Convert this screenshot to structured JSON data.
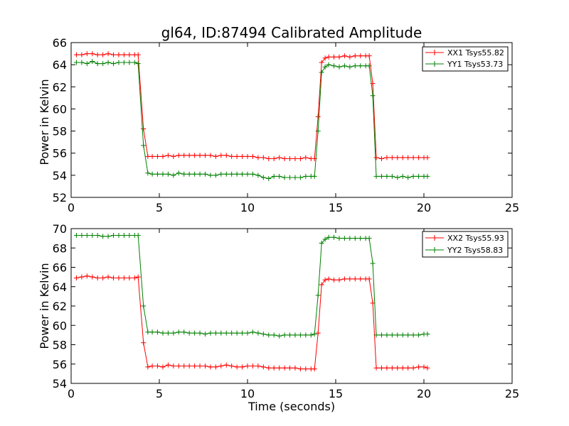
{
  "colors": {
    "red": "#ff0000",
    "green": "#008000",
    "axis": "#000000",
    "background": "#ffffff"
  },
  "chart_data": [
    {
      "type": "line",
      "title": "gl64, ID:87494 Calibrated Amplitude",
      "xlabel": "",
      "ylabel": "Power in Kelvin",
      "xlim": [
        0,
        25
      ],
      "ylim": [
        52,
        66
      ],
      "xticks": [
        0,
        5,
        10,
        15,
        20,
        25
      ],
      "yticks": [
        52,
        54,
        56,
        58,
        60,
        62,
        64,
        66
      ],
      "grid": false,
      "legend_position": "top-right",
      "series": [
        {
          "name": "XX1 Tsys55.82",
          "color": "#ff0000",
          "x": [
            0.3,
            0.6,
            0.9,
            1.2,
            1.5,
            1.8,
            2.1,
            2.4,
            2.7,
            3.0,
            3.3,
            3.6,
            3.8,
            4.1,
            4.35,
            4.6,
            4.9,
            5.2,
            5.5,
            5.8,
            6.1,
            6.4,
            6.7,
            7.0,
            7.3,
            7.6,
            7.9,
            8.2,
            8.5,
            8.8,
            9.1,
            9.4,
            9.7,
            10.0,
            10.3,
            10.6,
            10.9,
            11.2,
            11.5,
            11.8,
            12.1,
            12.4,
            12.7,
            13.0,
            13.3,
            13.6,
            13.8,
            14.0,
            14.2,
            14.4,
            14.6,
            14.9,
            15.2,
            15.5,
            15.8,
            16.1,
            16.4,
            16.7,
            16.9,
            17.1,
            17.3,
            17.6,
            17.9,
            18.2,
            18.5,
            18.8,
            19.1,
            19.4,
            19.7,
            20.0,
            20.2
          ],
          "y": [
            64.9,
            64.9,
            65.0,
            65.0,
            64.9,
            64.9,
            65.0,
            64.9,
            64.9,
            64.9,
            64.9,
            64.9,
            64.9,
            58.2,
            55.7,
            55.7,
            55.7,
            55.7,
            55.8,
            55.7,
            55.8,
            55.8,
            55.8,
            55.8,
            55.8,
            55.8,
            55.8,
            55.7,
            55.8,
            55.8,
            55.7,
            55.7,
            55.7,
            55.7,
            55.7,
            55.6,
            55.6,
            55.5,
            55.5,
            55.6,
            55.5,
            55.5,
            55.5,
            55.5,
            55.6,
            55.5,
            55.5,
            59.3,
            64.2,
            64.6,
            64.7,
            64.7,
            64.7,
            64.8,
            64.7,
            64.8,
            64.8,
            64.8,
            64.8,
            62.3,
            55.6,
            55.5,
            55.6,
            55.6,
            55.6,
            55.6,
            55.6,
            55.6,
            55.6,
            55.6,
            55.6
          ]
        },
        {
          "name": "YY1 Tsys53.73",
          "color": "#008000",
          "x": [
            0.3,
            0.6,
            0.9,
            1.2,
            1.5,
            1.8,
            2.1,
            2.4,
            2.7,
            3.0,
            3.3,
            3.6,
            3.8,
            4.1,
            4.35,
            4.6,
            4.9,
            5.2,
            5.5,
            5.8,
            6.1,
            6.4,
            6.7,
            7.0,
            7.3,
            7.6,
            7.9,
            8.2,
            8.5,
            8.8,
            9.1,
            9.4,
            9.7,
            10.0,
            10.3,
            10.6,
            10.9,
            11.2,
            11.5,
            11.8,
            12.1,
            12.4,
            12.7,
            13.0,
            13.3,
            13.6,
            13.8,
            14.0,
            14.2,
            14.4,
            14.6,
            14.9,
            15.2,
            15.5,
            15.8,
            16.1,
            16.4,
            16.7,
            16.9,
            17.1,
            17.3,
            17.6,
            17.9,
            18.2,
            18.5,
            18.8,
            19.1,
            19.4,
            19.7,
            20.0,
            20.2
          ],
          "y": [
            64.2,
            64.2,
            64.1,
            64.3,
            64.1,
            64.1,
            64.2,
            64.1,
            64.2,
            64.2,
            64.2,
            64.2,
            64.1,
            56.7,
            54.2,
            54.1,
            54.1,
            54.1,
            54.1,
            54.0,
            54.2,
            54.1,
            54.1,
            54.1,
            54.1,
            54.1,
            54.0,
            54.0,
            54.1,
            54.1,
            54.1,
            54.1,
            54.1,
            54.1,
            54.1,
            54.0,
            53.8,
            53.7,
            53.9,
            53.9,
            53.8,
            53.8,
            53.8,
            53.8,
            53.9,
            53.9,
            53.9,
            58.0,
            63.3,
            63.8,
            64.0,
            63.9,
            63.8,
            63.9,
            63.8,
            63.9,
            63.9,
            63.9,
            63.9,
            61.2,
            53.9,
            53.9,
            53.9,
            53.9,
            53.8,
            53.9,
            53.8,
            53.9,
            53.9,
            53.9,
            53.9
          ]
        }
      ]
    },
    {
      "type": "line",
      "title": "",
      "xlabel": "Time (seconds)",
      "ylabel": "Power in Kelvin",
      "xlim": [
        0,
        25
      ],
      "ylim": [
        54,
        70
      ],
      "xticks": [
        0,
        5,
        10,
        15,
        20,
        25
      ],
      "yticks": [
        54,
        56,
        58,
        60,
        62,
        64,
        66,
        68,
        70
      ],
      "grid": false,
      "legend_position": "top-right",
      "series": [
        {
          "name": "XX2 Tsys55.93",
          "color": "#ff0000",
          "x": [
            0.3,
            0.6,
            0.9,
            1.2,
            1.5,
            1.8,
            2.1,
            2.4,
            2.7,
            3.0,
            3.3,
            3.6,
            3.8,
            4.1,
            4.35,
            4.6,
            4.9,
            5.2,
            5.5,
            5.8,
            6.1,
            6.4,
            6.7,
            7.0,
            7.3,
            7.6,
            7.9,
            8.2,
            8.5,
            8.8,
            9.1,
            9.4,
            9.7,
            10.0,
            10.3,
            10.6,
            10.9,
            11.2,
            11.5,
            11.8,
            12.1,
            12.4,
            12.7,
            13.0,
            13.3,
            13.6,
            13.8,
            14.0,
            14.2,
            14.4,
            14.6,
            14.9,
            15.2,
            15.5,
            15.8,
            16.1,
            16.4,
            16.7,
            16.9,
            17.1,
            17.3,
            17.6,
            17.9,
            18.2,
            18.5,
            18.8,
            19.1,
            19.4,
            19.7,
            20.0,
            20.2
          ],
          "y": [
            64.9,
            65.0,
            65.1,
            65.0,
            64.9,
            64.9,
            65.0,
            64.9,
            64.9,
            64.9,
            64.9,
            64.9,
            65.0,
            58.2,
            55.7,
            55.8,
            55.8,
            55.7,
            55.9,
            55.8,
            55.8,
            55.8,
            55.8,
            55.8,
            55.8,
            55.8,
            55.7,
            55.7,
            55.8,
            55.9,
            55.8,
            55.7,
            55.7,
            55.8,
            55.8,
            55.8,
            55.7,
            55.6,
            55.6,
            55.6,
            55.6,
            55.6,
            55.6,
            55.5,
            55.5,
            55.5,
            55.5,
            59.2,
            64.2,
            64.7,
            64.8,
            64.7,
            64.7,
            64.8,
            64.8,
            64.8,
            64.8,
            64.8,
            64.8,
            62.3,
            55.6,
            55.6,
            55.6,
            55.6,
            55.6,
            55.6,
            55.6,
            55.6,
            55.7,
            55.7,
            55.6
          ]
        },
        {
          "name": "YY2 Tsys58.83",
          "color": "#008000",
          "x": [
            0.3,
            0.6,
            0.9,
            1.2,
            1.5,
            1.8,
            2.1,
            2.4,
            2.7,
            3.0,
            3.3,
            3.6,
            3.8,
            4.1,
            4.35,
            4.6,
            4.9,
            5.2,
            5.5,
            5.8,
            6.1,
            6.4,
            6.7,
            7.0,
            7.3,
            7.6,
            7.9,
            8.2,
            8.5,
            8.8,
            9.1,
            9.4,
            9.7,
            10.0,
            10.3,
            10.6,
            10.9,
            11.2,
            11.5,
            11.8,
            12.1,
            12.4,
            12.7,
            13.0,
            13.3,
            13.6,
            13.8,
            14.0,
            14.2,
            14.4,
            14.6,
            14.9,
            15.2,
            15.5,
            15.8,
            16.1,
            16.4,
            16.7,
            16.9,
            17.1,
            17.3,
            17.6,
            17.9,
            18.2,
            18.5,
            18.8,
            19.1,
            19.4,
            19.7,
            20.0,
            20.2
          ],
          "y": [
            69.3,
            69.3,
            69.3,
            69.3,
            69.3,
            69.2,
            69.2,
            69.3,
            69.3,
            69.3,
            69.3,
            69.3,
            69.3,
            62.0,
            59.3,
            59.3,
            59.3,
            59.2,
            59.2,
            59.2,
            59.3,
            59.3,
            59.2,
            59.2,
            59.2,
            59.1,
            59.2,
            59.2,
            59.2,
            59.2,
            59.2,
            59.2,
            59.2,
            59.2,
            59.3,
            59.2,
            59.1,
            59.0,
            59.0,
            58.9,
            59.0,
            59.0,
            59.0,
            59.0,
            59.0,
            59.0,
            59.1,
            63.1,
            68.5,
            68.9,
            69.1,
            69.1,
            69.0,
            69.0,
            69.0,
            69.0,
            69.0,
            69.0,
            69.0,
            66.4,
            59.0,
            59.0,
            59.0,
            59.0,
            59.0,
            59.0,
            59.0,
            59.0,
            59.0,
            59.1,
            59.1
          ]
        }
      ]
    }
  ]
}
